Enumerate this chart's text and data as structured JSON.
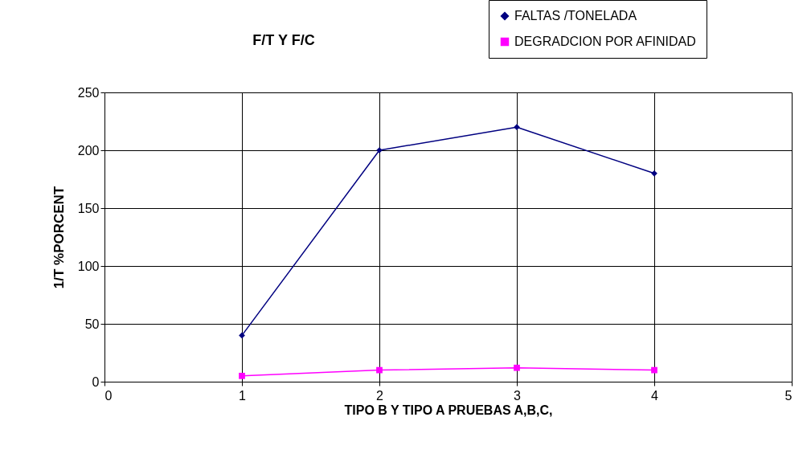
{
  "chart_data": {
    "type": "line",
    "title": "F/T Y F/C",
    "xlabel": "TIPO B  Y  TIPO A PRUEBAS A,B,C,",
    "ylabel": "1/T %PORCENT",
    "x": [
      1,
      2,
      3,
      4
    ],
    "series": [
      {
        "name": "FALTAS /TONELADA",
        "color": "#000080",
        "marker": "diamond",
        "values": [
          40,
          200,
          220,
          180
        ]
      },
      {
        "name": "DEGRADCION POR AFINIDAD",
        "color": "#ff00ff",
        "marker": "square",
        "values": [
          5,
          10,
          12,
          10
        ]
      }
    ],
    "xlim": [
      0,
      5
    ],
    "xticks": [
      0,
      1,
      2,
      3,
      4,
      5
    ],
    "ylim": [
      0,
      250
    ],
    "yticks": [
      0,
      50,
      100,
      150,
      200,
      250
    ],
    "grid": true,
    "line_style": "solid",
    "legend": "top right"
  }
}
